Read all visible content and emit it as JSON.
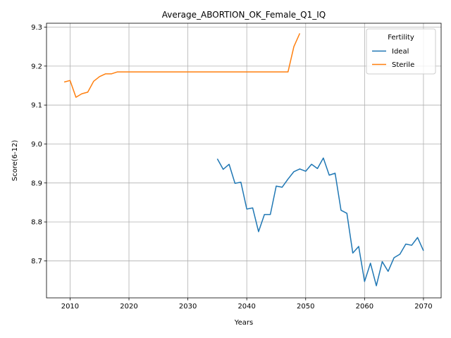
{
  "chart_data": {
    "type": "line",
    "title": "Average_ABORTION_OK_Female_Q1_IQ",
    "xlabel": "Years",
    "ylabel": "Score(6-12)",
    "xlim": [
      2006,
      2073
    ],
    "ylim": [
      8.605,
      9.31
    ],
    "xticks": [
      2010,
      2020,
      2030,
      2040,
      2050,
      2060,
      2070
    ],
    "yticks": [
      8.7,
      8.8,
      8.9,
      9.0,
      9.1,
      9.2,
      9.3
    ],
    "grid": true,
    "legend": {
      "title": "Fertility",
      "placement": "top-right"
    },
    "series": [
      {
        "name": "Ideal",
        "color": "#1f77b4",
        "x": [
          2035,
          2036,
          2037,
          2038,
          2039,
          2040,
          2041,
          2042,
          2043,
          2044,
          2045,
          2046,
          2047,
          2048,
          2049,
          2050,
          2051,
          2052,
          2053,
          2054,
          2055,
          2056,
          2057,
          2058,
          2059,
          2060,
          2061,
          2062,
          2063,
          2064,
          2065,
          2066,
          2067,
          2068,
          2069,
          2070
        ],
        "y": [
          8.962,
          8.935,
          8.948,
          8.899,
          8.902,
          8.833,
          8.836,
          8.775,
          8.819,
          8.819,
          8.892,
          8.889,
          8.91,
          8.929,
          8.936,
          8.93,
          8.948,
          8.937,
          8.964,
          8.92,
          8.925,
          8.83,
          8.822,
          8.72,
          8.737,
          8.647,
          8.694,
          8.636,
          8.698,
          8.673,
          8.708,
          8.717,
          8.743,
          8.74,
          8.76,
          8.726
        ]
      },
      {
        "name": "Sterile",
        "color": "#ff7f0e",
        "x": [
          2009,
          2010,
          2011,
          2012,
          2013,
          2014,
          2015,
          2016,
          2017,
          2018,
          2019,
          2020,
          2021,
          2022,
          2023,
          2024,
          2025,
          2026,
          2027,
          2028,
          2029,
          2030,
          2031,
          2032,
          2033,
          2034,
          2035,
          2036,
          2037,
          2038,
          2039,
          2040,
          2041,
          2042,
          2043,
          2044,
          2045,
          2046,
          2047,
          2048,
          2049
        ],
        "y": [
          9.159,
          9.163,
          9.12,
          9.129,
          9.133,
          9.161,
          9.173,
          9.18,
          9.18,
          9.185,
          9.185,
          9.185,
          9.185,
          9.185,
          9.185,
          9.185,
          9.185,
          9.185,
          9.185,
          9.185,
          9.185,
          9.185,
          9.185,
          9.185,
          9.185,
          9.185,
          9.185,
          9.185,
          9.185,
          9.185,
          9.185,
          9.185,
          9.185,
          9.185,
          9.185,
          9.185,
          9.185,
          9.185,
          9.185,
          9.25,
          9.284
        ]
      }
    ]
  }
}
